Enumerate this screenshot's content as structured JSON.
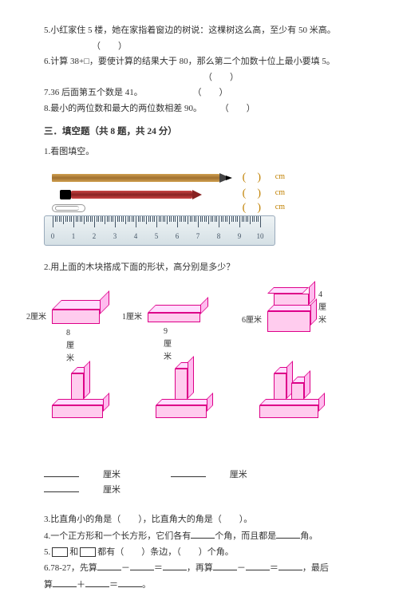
{
  "questions": {
    "q5": "5.小红家住 5 楼，她在家指着窗边的树说：这棵树这么高，至少有 50 米高。",
    "q5_paren": "（　　）",
    "q6": "6.计算 38+□，要使计算的结果大于 80，那么第二个加数十位上最小要填 5。",
    "q6_paren": "（　　）",
    "q7": "7.36 后面第五个数是 41。",
    "q7_paren": "（　　）",
    "q8": "8.最小的两位数和最大的两位数相差 90。",
    "q8_paren": "（　　）"
  },
  "section3": {
    "title": "三．填空题（共 8 题，共 24 分）",
    "q1": "1.看图填空。",
    "q2": "2.用上面的木块搭成下面的形状，高分别是多少？",
    "q3": "3.比直角小的角是（　　），比直角大的角是（　　）。",
    "q4_a": "4.一个正方形和一个长方形，它们各有",
    "q4_b": "个角，而且都是",
    "q4_c": "角。",
    "q5_a": "5.",
    "q5_b": "和",
    "q5_c": "都有（　　）条边，（　　）个角。",
    "q6_a": "6.78-27，先算",
    "q6_minus": "－",
    "q6_eq": "＝",
    "q6_b": "，再算",
    "q6_c": "，最后",
    "q6_d": "算",
    "q6_plus": "＋",
    "q6_eq2": "＝",
    "q6_e": "。"
  },
  "ruler": {
    "cm": "cm",
    "ticks": [
      "0",
      "1",
      "2",
      "3",
      "4",
      "5",
      "6",
      "7",
      "8",
      "9",
      "10"
    ]
  },
  "blocks": {
    "b1_h": "2厘米",
    "b1_w": "8厘米",
    "b2_h": "1厘米",
    "b2_w": "9厘米",
    "b3_h1": "4厘米",
    "b3_h2": "6厘米"
  },
  "answers": {
    "unit": "厘米"
  }
}
